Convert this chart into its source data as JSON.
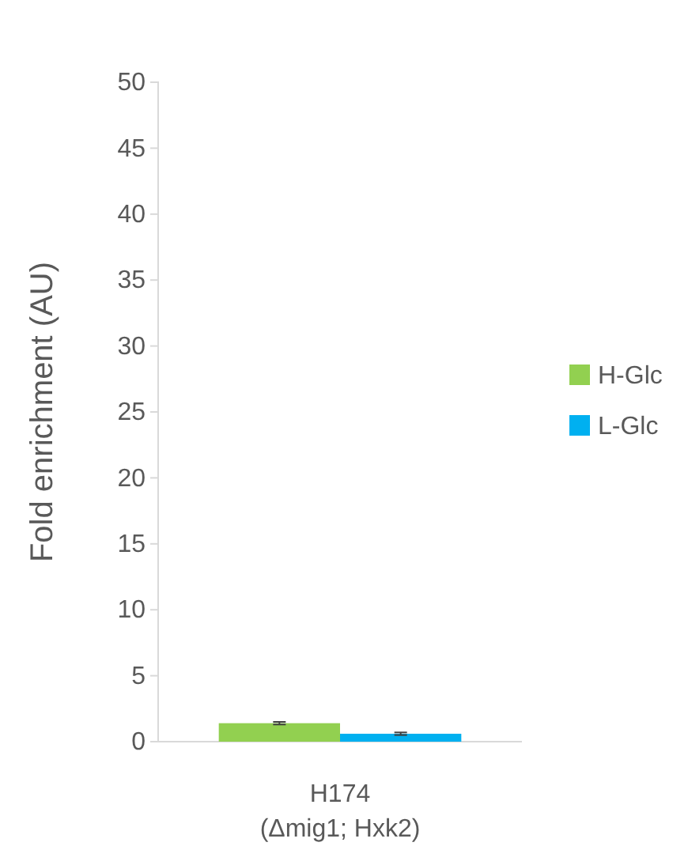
{
  "chart_data": {
    "type": "bar",
    "ylabel": "Fold enrichment (AU)",
    "categories": [
      "H174\n(Δmig1; Hxk2)"
    ],
    "series": [
      {
        "name": "H-Glc",
        "color": "#92d050",
        "values": [
          1.4
        ],
        "errors": [
          0.1
        ]
      },
      {
        "name": "L-Glc",
        "color": "#00b0f0",
        "values": [
          0.6
        ],
        "errors": [
          0.1
        ]
      }
    ],
    "ylim": [
      0,
      50
    ],
    "yticks": [
      0,
      5,
      10,
      15,
      20,
      25,
      30,
      35,
      40,
      45,
      50
    ],
    "grid": false,
    "legend": "right"
  }
}
